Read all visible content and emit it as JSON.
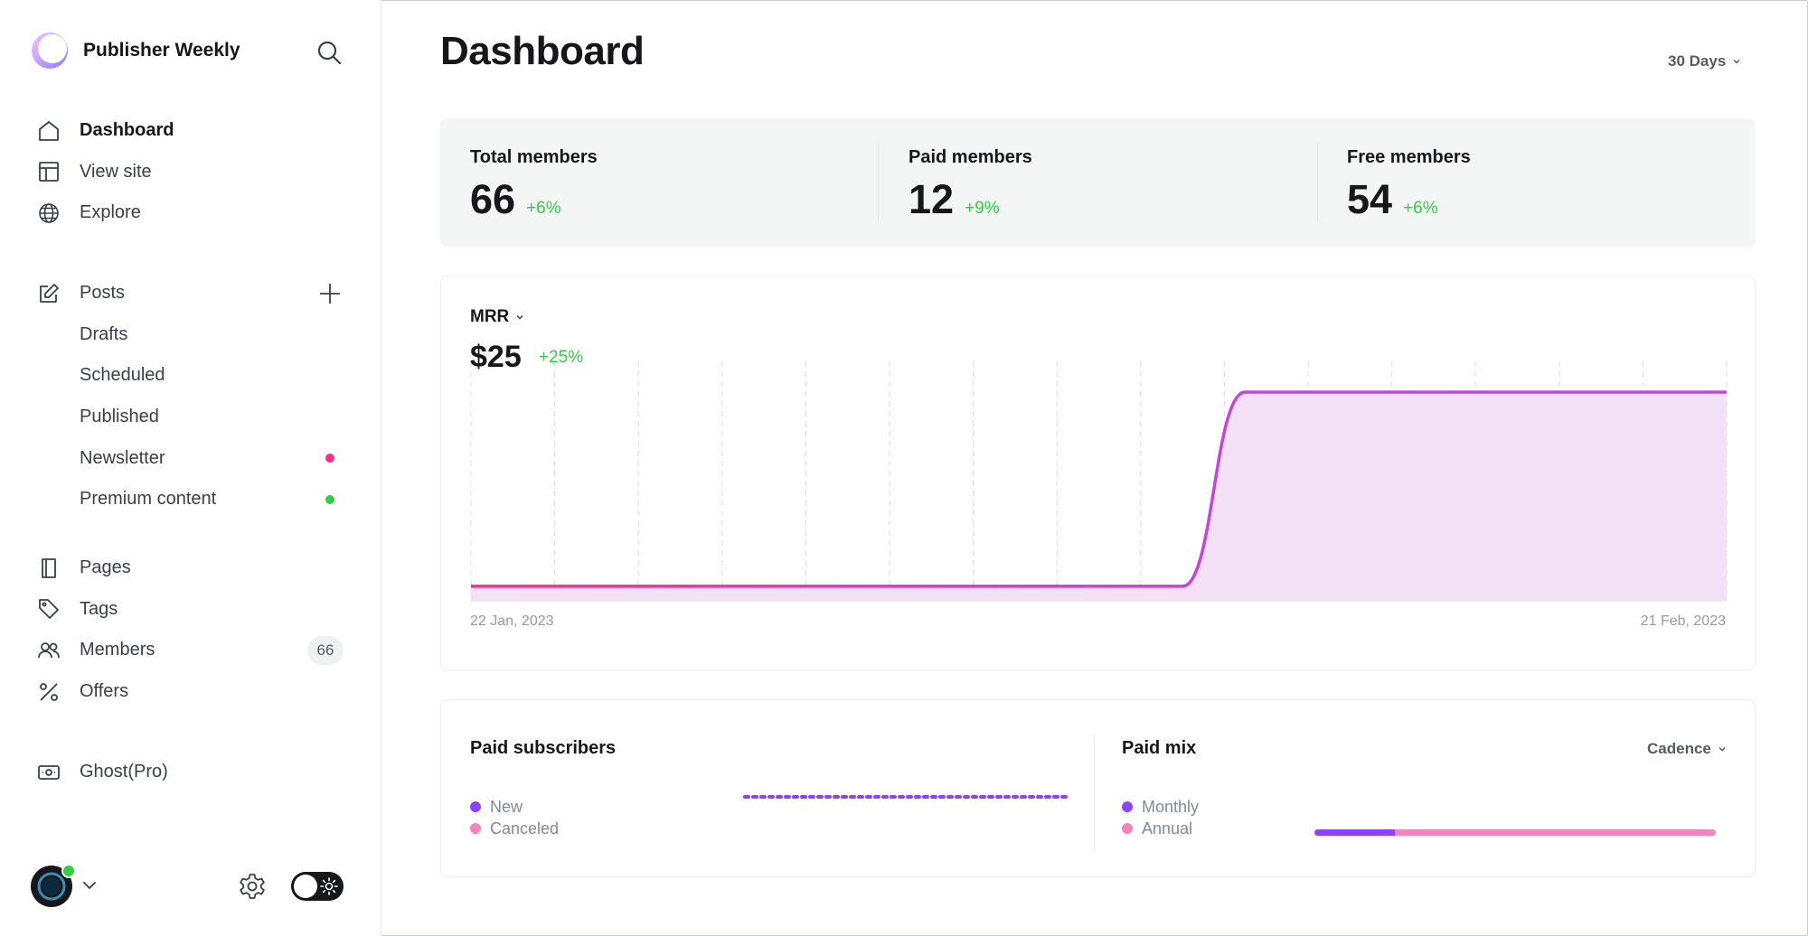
{
  "sidebar": {
    "brand_name": "Publisher Weekly",
    "primary": [
      {
        "label": "Dashboard",
        "icon": "home-icon"
      },
      {
        "label": "View site",
        "icon": "layout-icon"
      },
      {
        "label": "Explore",
        "icon": "globe-icon"
      }
    ],
    "posts": {
      "label": "Posts",
      "icon": "edit-icon"
    },
    "post_subitems": [
      {
        "label": "Drafts"
      },
      {
        "label": "Scheduled"
      },
      {
        "label": "Published"
      },
      {
        "label": "Newsletter",
        "dot_color": "#fb2d8d"
      },
      {
        "label": "Premium content",
        "dot_color": "#30cf43"
      }
    ],
    "secondary": [
      {
        "label": "Pages",
        "icon": "page-icon"
      },
      {
        "label": "Tags",
        "icon": "tag-icon"
      },
      {
        "label": "Members",
        "icon": "members-icon",
        "count": "66"
      },
      {
        "label": "Offers",
        "icon": "percent-icon"
      }
    ],
    "ghost_pro": {
      "label": "Ghost(Pro)",
      "icon": "credit-card-icon"
    }
  },
  "header": {
    "title": "Dashboard",
    "range": "30 Days"
  },
  "stats": [
    {
      "label": "Total members",
      "value": "66",
      "delta": "+6%"
    },
    {
      "label": "Paid members",
      "value": "12",
      "delta": "+9%"
    },
    {
      "label": "Free members",
      "value": "54",
      "delta": "+6%"
    }
  ],
  "mrr": {
    "metric": "MRR",
    "value": "$25",
    "delta": "+25%",
    "x_start": "22 Jan, 2023",
    "x_end": "21 Feb, 2023"
  },
  "chart_data": {
    "type": "area",
    "x_range": [
      "22 Jan, 2023",
      "21 Feb, 2023"
    ],
    "points_norm_value": [
      {
        "day": 0,
        "value": 0.07
      },
      {
        "day": 17,
        "value": 0.07
      },
      {
        "day": 18.5,
        "value": 1.0
      },
      {
        "day": 30,
        "value": 1.0
      }
    ],
    "line_color": "#c545d9",
    "start_color": "#fb2d8d",
    "fill_color": "#f4e1f7",
    "grid": "vertical-dashed"
  },
  "paid_subscribers": {
    "title": "Paid subscribers",
    "legend": [
      {
        "label": "New",
        "color": "#8e42ff"
      },
      {
        "label": "Canceled",
        "color": "#f485bc"
      }
    ]
  },
  "paid_mix": {
    "title": "Paid mix",
    "select": "Cadence",
    "legend": [
      {
        "label": "Monthly",
        "color": "#8e42ff"
      },
      {
        "label": "Annual",
        "color": "#f485bc"
      }
    ],
    "monthly_share": 0.2
  }
}
